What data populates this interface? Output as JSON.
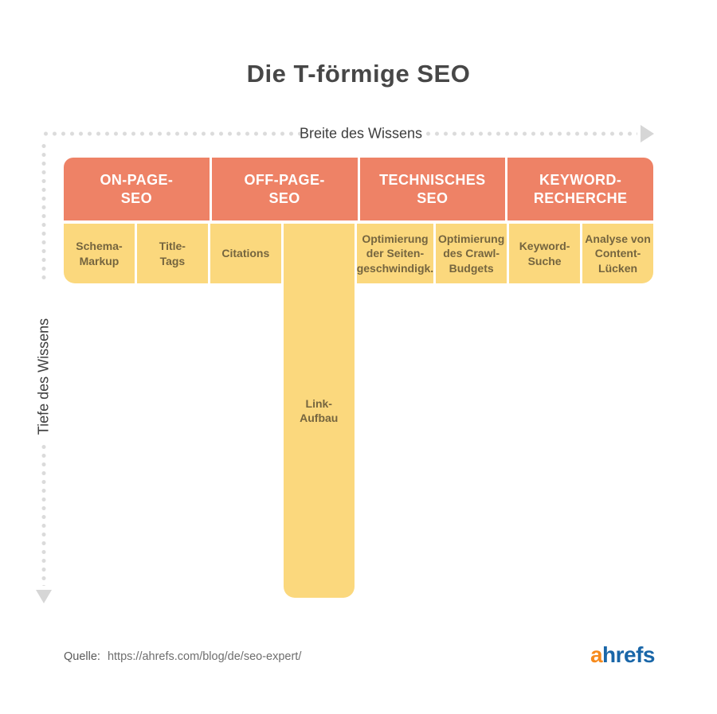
{
  "title": "Die T-förmige SEO",
  "axes": {
    "breadth_label": "Breite des Wissens",
    "depth_label": "Tiefe des Wissens"
  },
  "columns": [
    {
      "header": "ON-PAGE-\nSEO",
      "items": [
        "Schema-\nMarkup",
        "Title-\nTags"
      ]
    },
    {
      "header": "OFF-PAGE-\nSEO",
      "items": [
        "Citations",
        "Link-\nAufbau"
      ]
    },
    {
      "header": "TECHNISCHES\nSEO",
      "items": [
        "Optimierung\nder Seiten-\ngeschwindigk.",
        "Optimierung\ndes Crawl-\nBudgets"
      ]
    },
    {
      "header": "KEYWORD-\nRECHERCHE",
      "items": [
        "Keyword-\nSuche",
        "Analyse von\nContent-\nLücken"
      ]
    }
  ],
  "footer": {
    "source_label": "Quelle:",
    "source_url": "https://ahrefs.com/blog/de/seo-expert/"
  },
  "logo": {
    "part1": "a",
    "part2": "hrefs"
  },
  "colors": {
    "header-bg": "#EE8266",
    "header-text": "#FFFFFF",
    "cell-bg": "#FBD87D",
    "cell-text": "#75653F",
    "title-text": "#474747",
    "axis-text": "#3D3D3D",
    "dots": "#DBDBDB",
    "arrow": "#D6D6D6",
    "source-text": "#5A5A5A",
    "url-text": "#6E6E6E",
    "logo-a": "#F68A1C",
    "logo-rest": "#1966A8"
  }
}
